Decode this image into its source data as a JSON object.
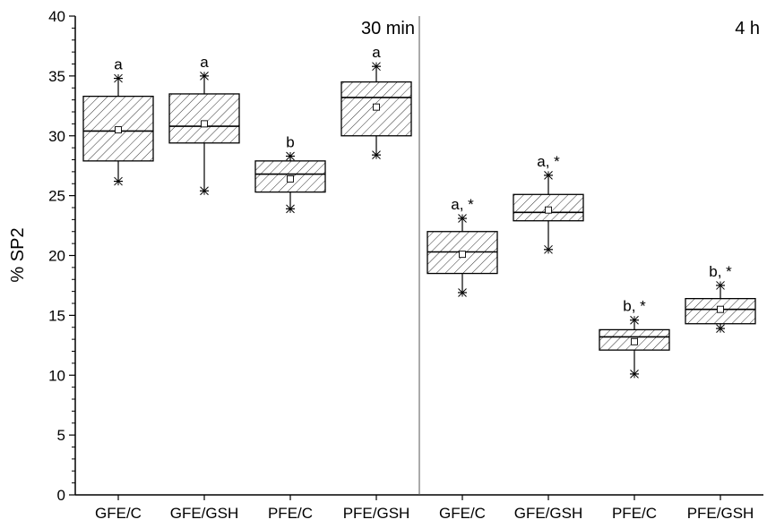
{
  "chart_data": {
    "type": "box",
    "ylabel": "% SP2",
    "xlabel": "",
    "ylim": [
      0,
      40
    ],
    "yticks": [
      0,
      5,
      10,
      15,
      20,
      25,
      30,
      35,
      40
    ],
    "yminor_step": 1,
    "categories": [
      "GFE/C",
      "GFE/GSH",
      "PFE/C",
      "PFE/GSH",
      "GFE/C",
      "GFE/GSH",
      "PFE/C",
      "PFE/GSH"
    ],
    "panels": [
      {
        "label": "30 min",
        "categories_index": [
          0,
          1,
          2,
          3
        ]
      },
      {
        "label": "4 h",
        "categories_index": [
          4,
          5,
          6,
          7
        ]
      }
    ],
    "boxes": [
      {
        "min": 26.2,
        "q1": 27.9,
        "median": 30.4,
        "q3": 33.3,
        "max": 34.8,
        "mean": 30.5,
        "annotation": "a"
      },
      {
        "min": 25.4,
        "q1": 29.4,
        "median": 30.8,
        "q3": 33.5,
        "max": 35.0,
        "mean": 31.0,
        "annotation": "a"
      },
      {
        "min": 23.9,
        "q1": 25.3,
        "median": 26.8,
        "q3": 27.9,
        "max": 28.3,
        "mean": 26.4,
        "annotation": "b"
      },
      {
        "min": 28.4,
        "q1": 30.0,
        "median": 33.2,
        "q3": 34.5,
        "max": 35.8,
        "mean": 32.4,
        "annotation": "a"
      },
      {
        "min": 16.9,
        "q1": 18.5,
        "median": 20.3,
        "q3": 22.0,
        "max": 23.1,
        "mean": 20.1,
        "annotation": "a, *"
      },
      {
        "min": 20.5,
        "q1": 22.9,
        "median": 23.6,
        "q3": 25.1,
        "max": 26.7,
        "mean": 23.8,
        "annotation": "a, *"
      },
      {
        "min": 10.1,
        "q1": 12.1,
        "median": 13.2,
        "q3": 13.8,
        "max": 14.6,
        "mean": 12.8,
        "annotation": "b, *"
      },
      {
        "min": 13.9,
        "q1": 14.3,
        "median": 15.5,
        "q3": 16.4,
        "max": 17.5,
        "mean": 15.5,
        "annotation": "b, *"
      }
    ],
    "colors": {
      "box_fill": "#ffffff",
      "hatch": "#333333",
      "stroke": "#000000",
      "divider": "#555555"
    }
  }
}
